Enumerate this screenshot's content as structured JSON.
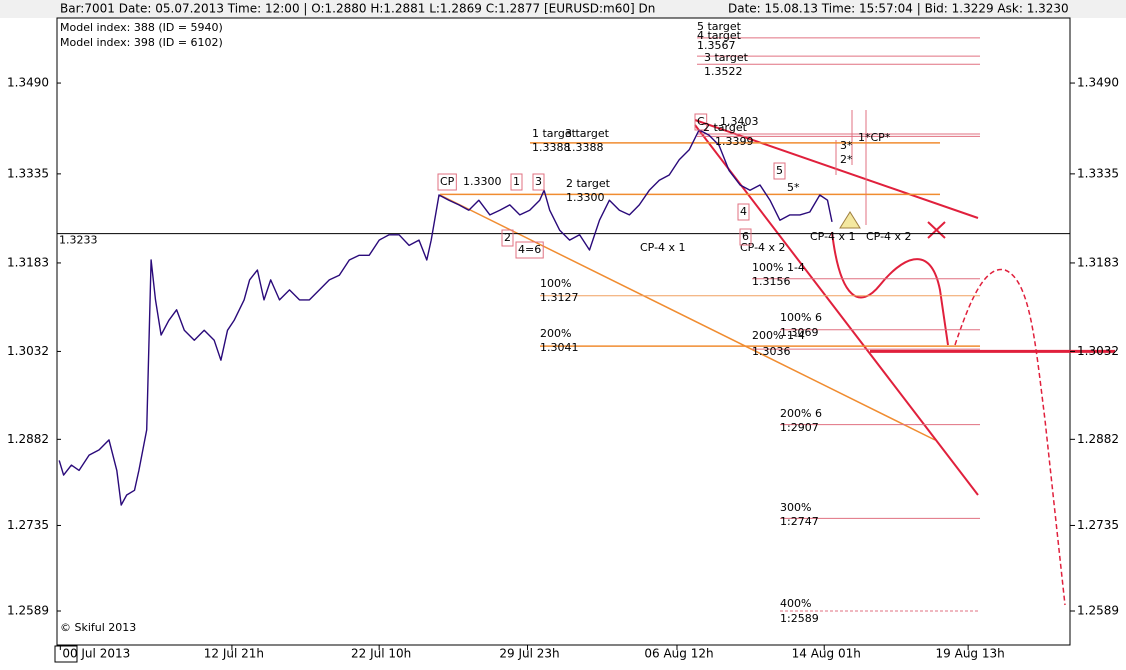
{
  "header": {
    "left": "Bar:7001  Date:  05.07.2013  Time:  12:00  |  O:1.2880  H:1.2881  L:1.2869  C:1.2877   [EURUSD:m60]  Dn",
    "right": "Date:  15.08.13  Time:  15:57:04  |  Bid:  1.3229  Ask:  1.3230"
  },
  "info": [
    "Model index: 388  (ID = 5940)",
    "Model index: 398  (ID = 6102)"
  ],
  "copyright": "© Skiful 2013",
  "chart_data": {
    "type": "line",
    "x": [
      2,
      6,
      13,
      20,
      29,
      38,
      47,
      54,
      58,
      63,
      70,
      74,
      81,
      85,
      89,
      94,
      101,
      108,
      115,
      124,
      133,
      142,
      148,
      154,
      160,
      169,
      174,
      181,
      187,
      193,
      201,
      210,
      219,
      228,
      237,
      246,
      255,
      264,
      273,
      282,
      291,
      300,
      309,
      318,
      327,
      334,
      338,
      345,
      354,
      363,
      372,
      381,
      391,
      400,
      409,
      418,
      427,
      436,
      440,
      445,
      454,
      463,
      472,
      481,
      490,
      499,
      508,
      517,
      526,
      535,
      544,
      553,
      562,
      571,
      580,
      589,
      598,
      607,
      617,
      626,
      635,
      644,
      653,
      662,
      671,
      680,
      689,
      696,
      700
    ],
    "series": [
      {
        "name": "EURUSD:m60",
        "color": "#2a0a7a",
        "values": [
          1.2846,
          1.2821,
          1.2838,
          1.2829,
          1.2855,
          1.2864,
          1.2881,
          1.2829,
          1.277,
          1.2787,
          1.2795,
          1.2829,
          1.2898,
          1.3188,
          1.312,
          1.306,
          1.3085,
          1.3103,
          1.3068,
          1.3051,
          1.3068,
          1.3051,
          1.3017,
          1.3068,
          1.3085,
          1.312,
          1.3154,
          1.3171,
          1.312,
          1.3154,
          1.312,
          1.3137,
          1.312,
          1.312,
          1.3137,
          1.3154,
          1.3162,
          1.3188,
          1.3196,
          1.3196,
          1.3222,
          1.3231,
          1.3231,
          1.3213,
          1.3222,
          1.3188,
          1.3222,
          1.3299,
          1.329,
          1.3282,
          1.3273,
          1.329,
          1.3265,
          1.3273,
          1.3282,
          1.3265,
          1.3273,
          1.329,
          1.3307,
          1.3273,
          1.3239,
          1.3222,
          1.3231,
          1.3205,
          1.3256,
          1.329,
          1.3273,
          1.3265,
          1.3282,
          1.3307,
          1.3324,
          1.3333,
          1.3359,
          1.3376,
          1.341,
          1.3401,
          1.3384,
          1.3341,
          1.3316,
          1.3307,
          1.3316,
          1.329,
          1.3256,
          1.3265,
          1.3265,
          1.327,
          1.3299,
          1.329,
          1.3253
        ]
      }
    ],
    "xlim": [
      0,
      915
    ],
    "xticks": [
      {
        "value": 3,
        "label": "00 Jul 2013"
      },
      {
        "value": 158,
        "label": "12 Jul 21h"
      },
      {
        "value": 291,
        "label": "22 Jul 10h"
      },
      {
        "value": 425,
        "label": "29 Jul 23h"
      },
      {
        "value": 560,
        "label": "06 Aug 12h"
      },
      {
        "value": 693,
        "label": "14 Aug 01h"
      },
      {
        "value": 823,
        "label": "19 Aug 13h"
      }
    ],
    "ylim": [
      1.2531,
      1.3601
    ],
    "yticks": [
      {
        "value": 1.349,
        "label": "1.3490"
      },
      1.3335,
      1.3183,
      1.3032,
      1.2882,
      1.2735,
      1.2589
    ],
    "last_price": {
      "value": 1.3233,
      "label": "1.3233"
    },
    "target": 1.3032,
    "levels": [
      {
        "value": 1.3567,
        "color": "#e07080"
      },
      {
        "value": 1.3536,
        "color": "#e07080"
      },
      {
        "value": 1.3522,
        "color": "#e07080"
      },
      {
        "value": 1.3403,
        "color": "#e07080"
      },
      {
        "value": 1.3399,
        "color": "#e07080"
      },
      {
        "value": 1.3388,
        "color": "#f08c30"
      },
      {
        "value": 1.33,
        "color": "#f08c30"
      },
      {
        "value": 1.3156,
        "color": "#e07080"
      },
      {
        "value": 1.3127,
        "color": "#f0a060"
      },
      {
        "value": 1.3069,
        "color": "#e07080"
      },
      {
        "value": 1.3041,
        "color": "#f08c30"
      },
      {
        "value": 1.3036,
        "color": "#e07080"
      },
      {
        "value": 1.2907,
        "color": "#e07080"
      },
      {
        "value": 1.2747,
        "color": "#e07080"
      },
      {
        "value": 1.2589,
        "color": "#e07080"
      }
    ],
    "annotations": [
      "5 target",
      "4 target",
      "1.3567",
      "3 target",
      "1.3522",
      "1 target",
      "3 target",
      "1.3388",
      "1.3388",
      "C",
      "1.3403",
      "2 target",
      "1.3399",
      "2 target",
      "1.3300",
      "CP",
      "1.3300",
      "1",
      "3",
      "2",
      "4=6",
      "CP-4 x 1",
      "CP-4 x 2",
      "CP-4 x 1",
      "CP-4 x 2",
      "5",
      "5*",
      "4",
      "6",
      "3*",
      "2*",
      "1*CP*",
      "100% 1-4",
      "1.3156",
      "100%",
      "1.3127",
      "200%",
      "1.3041",
      "100% 6",
      "1.3069",
      "200% 1-4",
      "1.3036",
      "200% 6",
      "1:2907",
      "300%",
      "1:2747",
      "400%",
      "1:2589"
    ]
  }
}
